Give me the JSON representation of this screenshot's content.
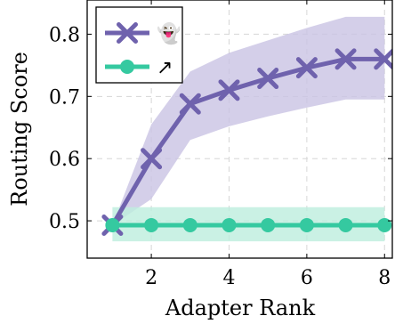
{
  "chart_data": {
    "type": "line",
    "xlabel": "Adapter Rank",
    "ylabel": "Routing Score",
    "xlim": [
      0.35,
      8.2
    ],
    "ylim": [
      0.44,
      0.855
    ],
    "xticks": [
      2,
      4,
      6,
      8
    ],
    "yticks": [
      0.5,
      0.6,
      0.7,
      0.8
    ],
    "ytick_labels": [
      "0.5",
      "0.6",
      "0.7",
      "0.8"
    ],
    "grid": true,
    "legend_position": "top-left",
    "series": [
      {
        "name": "👻",
        "color": "#6f62ad",
        "band_color": "#c9c3e3",
        "marker": "cross",
        "x": [
          1,
          2,
          3,
          4,
          5,
          6,
          7,
          8
        ],
        "y": [
          0.493,
          0.6,
          0.688,
          0.71,
          0.729,
          0.746,
          0.76,
          0.76
        ],
        "y_low": [
          0.493,
          0.535,
          0.63,
          0.652,
          0.668,
          0.682,
          0.695,
          0.695
        ],
        "y_high": [
          0.493,
          0.655,
          0.74,
          0.77,
          0.79,
          0.81,
          0.828,
          0.828
        ]
      },
      {
        "name": "↗",
        "color": "#35c9a0",
        "band_color": "#bdeedd",
        "marker": "circle",
        "x": [
          1,
          2,
          3,
          4,
          5,
          6,
          7,
          8
        ],
        "y": [
          0.493,
          0.493,
          0.493,
          0.493,
          0.493,
          0.493,
          0.493,
          0.493
        ],
        "y_low": [
          0.467,
          0.467,
          0.467,
          0.467,
          0.467,
          0.467,
          0.467,
          0.467
        ],
        "y_high": [
          0.522,
          0.522,
          0.522,
          0.522,
          0.522,
          0.522,
          0.522,
          0.522
        ]
      }
    ]
  }
}
